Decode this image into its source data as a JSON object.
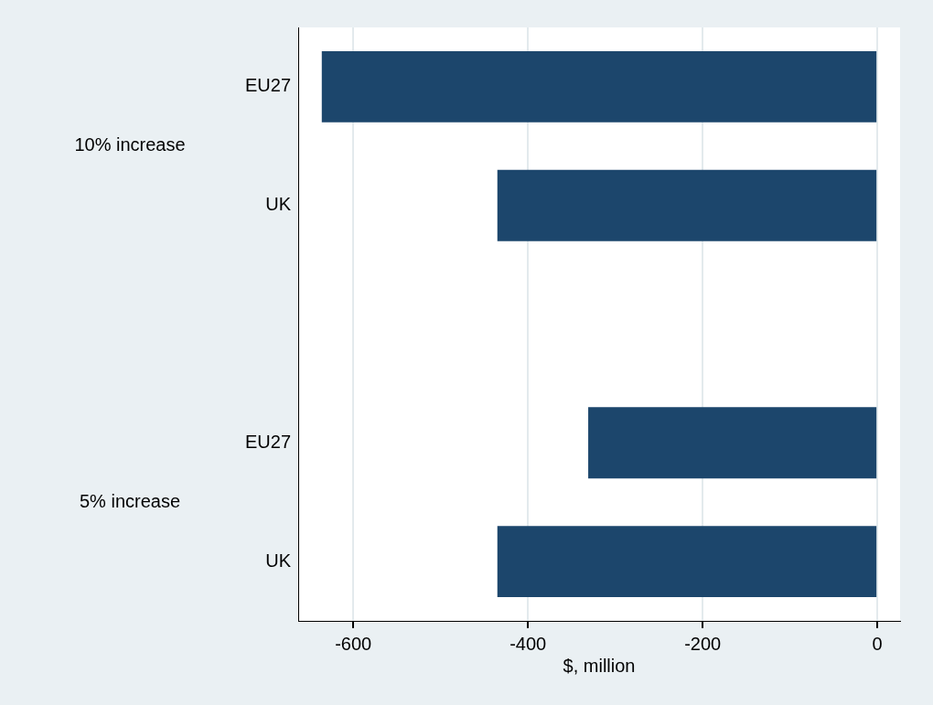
{
  "chart_data": {
    "type": "bar",
    "orientation": "horizontal",
    "xlabel": "$, million",
    "categories": [
      "EU27",
      "UK",
      null,
      "EU27",
      "UK"
    ],
    "values": [
      -636,
      -435,
      null,
      -331,
      -435
    ],
    "color": "#1c466c",
    "xlim": [
      -663,
      26
    ],
    "xticks": [
      -600,
      -400,
      -200,
      0
    ],
    "grid": "x",
    "legend": false,
    "annotations": [
      "10% increase",
      "5% increase"
    ]
  }
}
